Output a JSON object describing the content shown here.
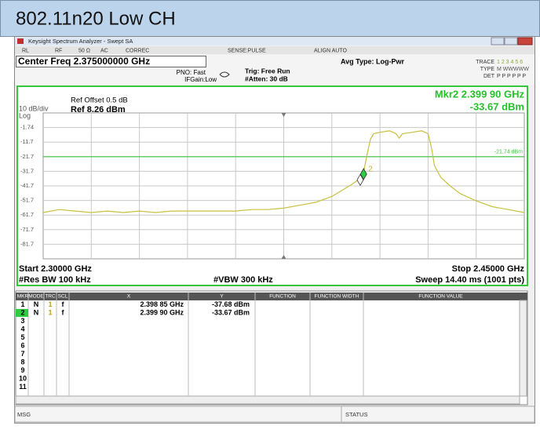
{
  "header": {
    "title": "802.11n20 Low CH"
  },
  "window": {
    "title": "Keysight Spectrum Analyzer - Swept SA"
  },
  "status_row": [
    "RL",
    "RF",
    "50 Ω",
    "AC",
    "CORREC",
    "SENSE:PULSE",
    "ALIGN AUTO"
  ],
  "settings": {
    "center_freq": "Center Freq 2.375000000 GHz",
    "pno": "PNO: Fast",
    "ifgain": "IFGain:Low",
    "trig": "Trig: Free Run",
    "atten": "#Atten: 30 dB",
    "avg_type": "Avg Type: Log-Pwr",
    "trace_label": "TRACE",
    "trace_vals": "1 2 3 4 5 6",
    "type_label": "TYPE",
    "type_vals": "M WWWWW",
    "det_label": "DET",
    "det_vals": "P P P P P P"
  },
  "graph": {
    "scale": "10 dB/div",
    "log": "Log",
    "ref_offset": "Ref Offset 0.5 dB",
    "ref": "Ref 8.26 dBm",
    "marker_readout_freq": "Mkr2 2.399 90 GHz",
    "marker_readout_amp": "-33.67 dBm",
    "display_line": -21.74,
    "display_line_label": "-21.74 dBm",
    "ylim": [
      -91.74,
      8.26
    ],
    "yticks": [
      -1.74,
      {
        "value": -11.74,
        "label": "-11.7"
      },
      {
        "value": -21.74,
        "label": "-21.7"
      },
      {
        "value": -31.74,
        "label": "-31.7"
      },
      {
        "value": -41.74,
        "label": "-41.7"
      },
      {
        "value": -51.74,
        "label": "-51.7"
      },
      {
        "value": -61.74,
        "label": "-61.7"
      },
      {
        "value": -71.74,
        "label": "-71.7"
      },
      {
        "value": -81.74,
        "label": "-81.7"
      }
    ],
    "xlim": [
      2.3,
      2.45
    ],
    "start": "Start 2.30000 GHz",
    "stop": "Stop 2.45000 GHz",
    "rbw": "#Res BW 100 kHz",
    "vbw": "#VBW 300 kHz",
    "sweep": "Sweep  14.40 ms (1001 pts)",
    "trace": {
      "color": "#c8c040",
      "x": [
        2.3,
        2.305,
        2.31,
        2.315,
        2.32,
        2.325,
        2.33,
        2.335,
        2.34,
        2.345,
        2.35,
        2.355,
        2.36,
        2.365,
        2.37,
        2.375,
        2.38,
        2.385,
        2.39,
        2.393,
        2.396,
        2.398,
        2.399,
        2.4,
        2.401,
        2.402,
        2.403,
        2.405,
        2.408,
        2.41,
        2.411,
        2.412,
        2.415,
        2.418,
        2.42,
        2.421,
        2.422,
        2.424,
        2.427,
        2.43,
        2.435,
        2.44,
        2.445,
        2.45
      ],
      "y": [
        -60,
        -58,
        -59,
        -60,
        -59,
        -60,
        -59,
        -60,
        -59,
        -59,
        -59,
        -59,
        -59,
        -58,
        -58,
        -57,
        -55,
        -53,
        -49,
        -45,
        -41,
        -38,
        -35,
        -31,
        -20,
        -10,
        -6,
        -5,
        -4,
        -6,
        -9,
        -6,
        -5,
        -4,
        -6,
        -15,
        -28,
        -36,
        -42,
        -47,
        -52,
        -56,
        -58,
        -60
      ]
    },
    "markers": [
      {
        "x": 2.39885,
        "y": -37.68
      },
      {
        "label": "2",
        "x": 2.3999,
        "y": -33.67
      }
    ]
  },
  "table": {
    "headers": [
      "MKR",
      "MODE",
      "TRC",
      "SCL",
      "X",
      "Y",
      "FUNCTION",
      "FUNCTION WIDTH",
      "FUNCTION VALUE"
    ],
    "rows": [
      [
        "1",
        "N",
        "1",
        "f",
        "2.398 85 GHz",
        "-37.68 dBm"
      ],
      [
        "2",
        "N",
        "1",
        "f",
        "2.399 90 GHz",
        "-33.67 dBm"
      ],
      [
        "3"
      ],
      [
        "4"
      ],
      [
        "5"
      ],
      [
        "6"
      ],
      [
        "7"
      ],
      [
        "8"
      ],
      [
        "9"
      ],
      [
        "10"
      ],
      [
        "11"
      ]
    ]
  },
  "footer": {
    "msg": "MSG",
    "status": "STATUS"
  }
}
